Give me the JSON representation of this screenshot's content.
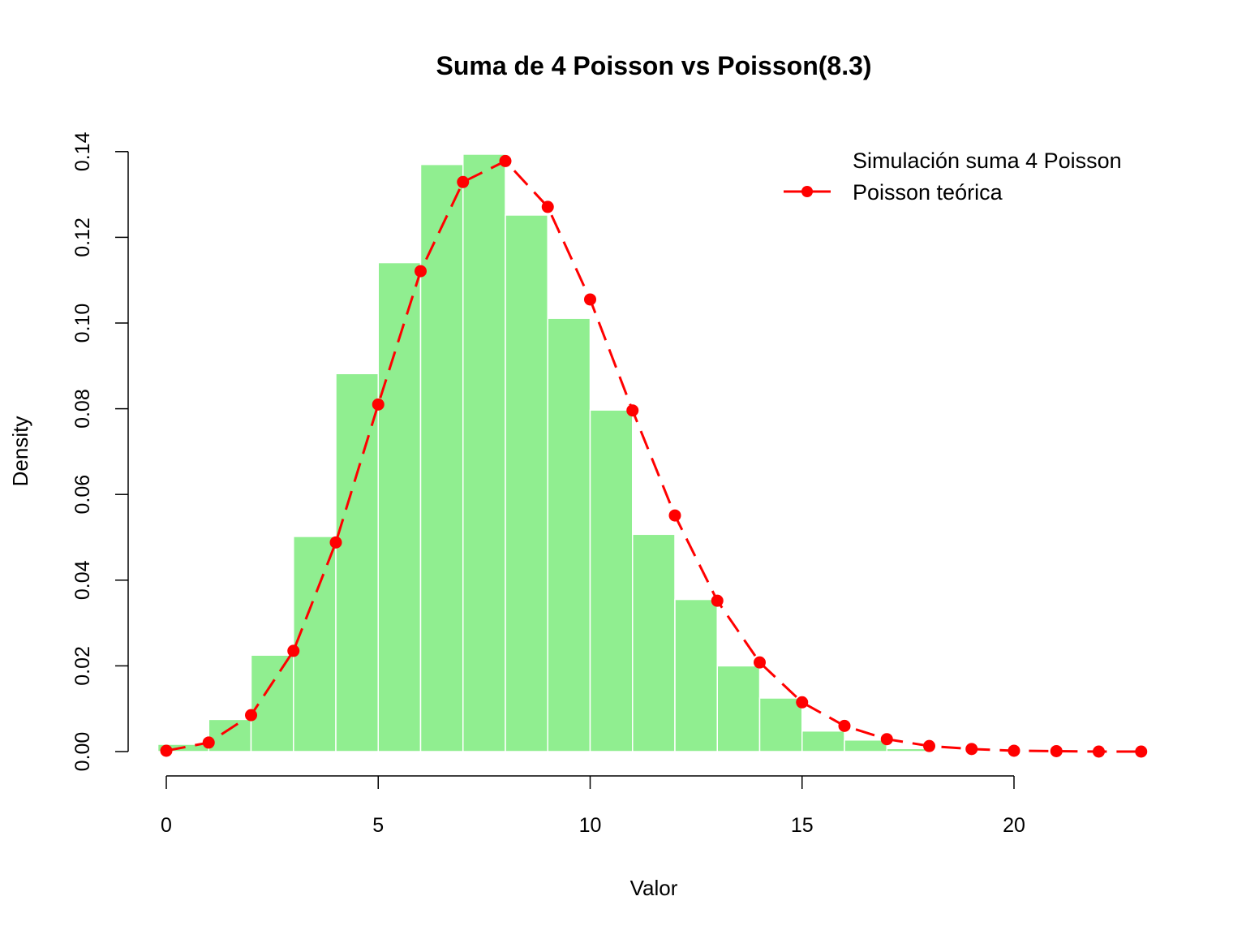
{
  "chart_data": {
    "type": "bar",
    "title": "Suma de 4 Poisson vs Poisson(8.3)",
    "xlabel": "Valor",
    "ylabel": "Density",
    "xlim": [
      -0.2,
      23.5
    ],
    "ylim": [
      0,
      0.14
    ],
    "x_ticks": [
      0,
      5,
      10,
      15,
      20
    ],
    "y_ticks": [
      0.0,
      0.02,
      0.04,
      0.06,
      0.08,
      0.1,
      0.12,
      0.14
    ],
    "y_tick_labels": [
      "0.00",
      "0.02",
      "0.04",
      "0.06",
      "0.08",
      "0.10",
      "0.12",
      "0.14"
    ],
    "grid": false,
    "legend_position": "top-right",
    "series": [
      {
        "name": "Simulación suma 4 Poisson",
        "kind": "histogram",
        "bin_edges": [
          -0.2,
          1,
          2,
          3,
          4,
          5,
          6,
          7,
          8,
          9,
          10,
          11,
          12,
          13,
          14,
          15,
          16,
          17,
          18,
          19,
          20
        ],
        "values": [
          0.0017,
          0.0075,
          0.0225,
          0.0502,
          0.0882,
          0.1141,
          0.137,
          0.1394,
          0.1252,
          0.1011,
          0.0797,
          0.0507,
          0.0355,
          0.02,
          0.0125,
          0.0048,
          0.0027,
          0.0007,
          0.0002,
          0.0001
        ],
        "color": "#90EE90"
      },
      {
        "name": "Poisson teórica",
        "kind": "line-points",
        "x": [
          0,
          1,
          2,
          3,
          4,
          5,
          6,
          7,
          8,
          9,
          10,
          11,
          12,
          13,
          14,
          15,
          16,
          17,
          18,
          19,
          20,
          21,
          22,
          23
        ],
        "values": [
          0.0002,
          0.0021,
          0.0085,
          0.0235,
          0.0488,
          0.081,
          0.1121,
          0.1329,
          0.1378,
          0.1271,
          0.1055,
          0.0796,
          0.0551,
          0.0352,
          0.0208,
          0.0115,
          0.006,
          0.0029,
          0.0013,
          0.0006,
          0.0002,
          0.0001,
          0.0,
          0.0
        ],
        "color": "#FF0000"
      }
    ]
  }
}
